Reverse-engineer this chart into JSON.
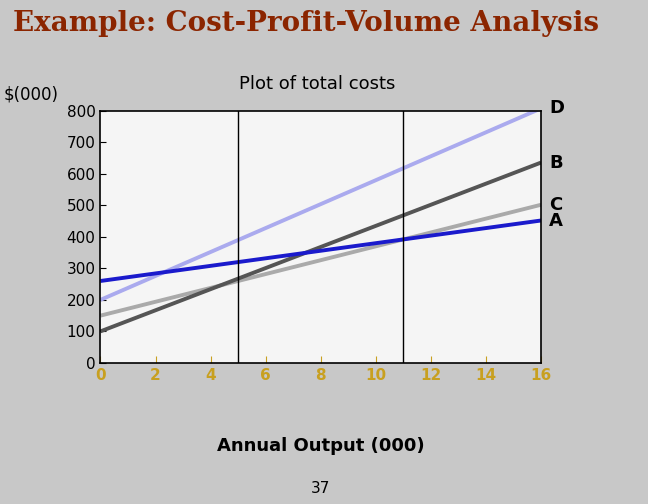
{
  "title": "Example: Cost-Profit-Volume Analysis",
  "title_color": "#8B2500",
  "subtitle": "Plot of total costs",
  "ylabel": "$(000)",
  "xlabel": "Annual Output (000)",
  "page_number": "37",
  "xlim": [
    0,
    16
  ],
  "ylim": [
    0,
    800
  ],
  "xticks": [
    0,
    2,
    4,
    6,
    8,
    10,
    12,
    14,
    16
  ],
  "yticks": [
    0,
    100,
    200,
    300,
    400,
    500,
    600,
    700,
    800
  ],
  "xtick_color": "#C8A020",
  "lines": {
    "A": {
      "intercept": 260,
      "slope": 12.0,
      "color": "#1A1ACC",
      "linewidth": 2.8
    },
    "B": {
      "intercept": 100,
      "slope": 33.5,
      "color": "#555555",
      "linewidth": 2.8
    },
    "C": {
      "intercept": 150,
      "slope": 22.0,
      "color": "#AAAAAA",
      "linewidth": 2.8
    },
    "D": {
      "intercept": 200,
      "slope": 38.0,
      "color": "#AAAAEE",
      "linewidth": 2.8
    }
  },
  "vlines": [
    5,
    11
  ],
  "vline_color": "#000000",
  "background_color": "#C8C8C8",
  "plot_bg_color": "#F5F5F5",
  "title_fontsize": 20,
  "subtitle_fontsize": 13,
  "tick_fontsize": 11
}
